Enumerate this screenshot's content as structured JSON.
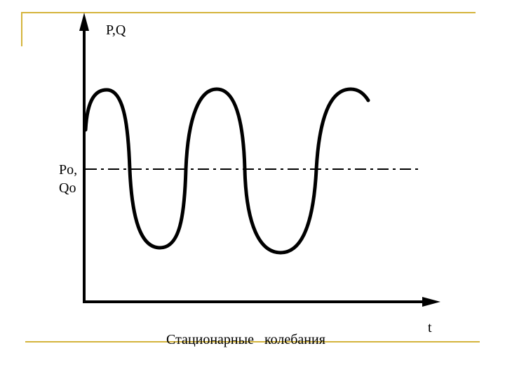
{
  "slide": {
    "accent_color": "#d4b43c"
  },
  "diagram": {
    "y_axis_label": "P,Q",
    "x_axis_label": "t",
    "equilibrium_label_line1": "Po,",
    "equilibrium_label_line2": "Qo",
    "caption": "Стационарные   колебания",
    "curve_color": "#000000"
  }
}
